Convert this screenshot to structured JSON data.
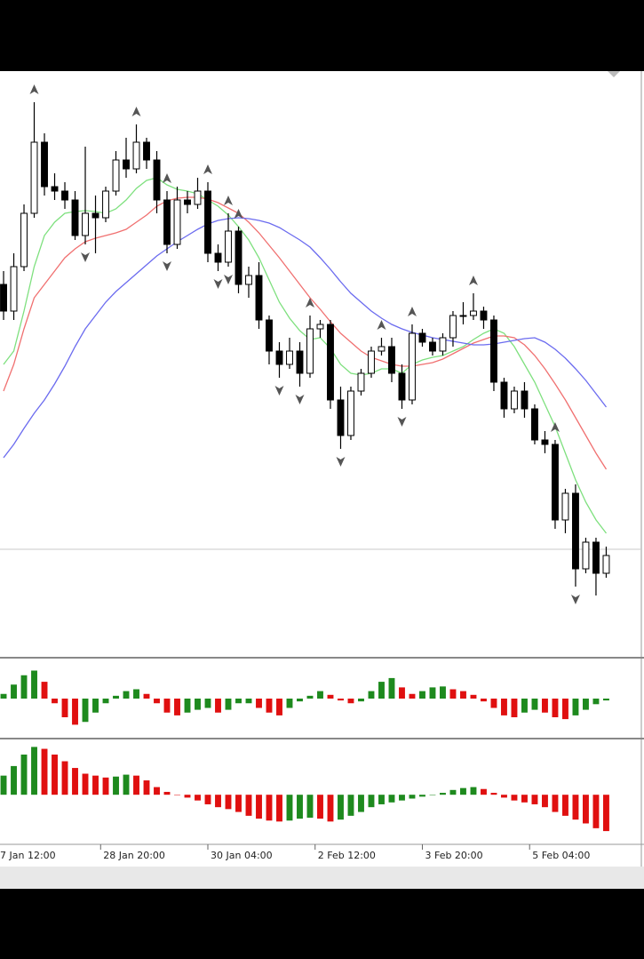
{
  "chart_data": {
    "type": "candlestick",
    "xlim": [
      -0.35,
      62.7
    ],
    "ylim": [
      0,
      660
    ],
    "xticks": [
      {
        "value": -1,
        "label": "7 Jan 12:00"
      },
      {
        "value": 9.5,
        "label": "28 Jan 20:00"
      },
      {
        "value": 20,
        "label": "30 Jan 04:00"
      },
      {
        "value": 30.5,
        "label": "2 Feb 12:00"
      },
      {
        "value": 41,
        "label": "3 Feb 20:00"
      },
      {
        "value": 51.5,
        "label": "5 Feb 04:00"
      }
    ],
    "open": [
      420,
      390,
      440,
      500,
      580,
      530,
      525,
      515,
      475,
      500,
      495,
      525,
      560,
      550,
      580,
      560,
      515,
      465,
      515,
      510,
      525,
      455,
      445,
      480,
      420,
      430,
      380,
      345,
      330,
      345,
      320,
      370,
      375,
      290,
      250,
      300,
      320,
      345,
      350,
      320,
      290,
      365,
      355,
      345,
      360,
      385,
      385,
      390,
      380,
      310,
      280,
      300,
      280,
      245,
      240,
      155,
      185,
      100,
      130,
      95
    ],
    "high": [
      435,
      455,
      510,
      625,
      590,
      545,
      535,
      525,
      575,
      520,
      530,
      570,
      585,
      600,
      585,
      570,
      525,
      530,
      525,
      540,
      535,
      465,
      500,
      485,
      440,
      445,
      385,
      355,
      360,
      355,
      385,
      380,
      380,
      305,
      305,
      325,
      350,
      360,
      360,
      330,
      375,
      370,
      360,
      365,
      390,
      400,
      410,
      395,
      385,
      315,
      305,
      310,
      285,
      255,
      245,
      190,
      195,
      135,
      135,
      125
    ],
    "low": [
      380,
      380,
      435,
      495,
      520,
      515,
      505,
      470,
      465,
      455,
      490,
      520,
      540,
      545,
      550,
      500,
      455,
      460,
      500,
      505,
      445,
      435,
      440,
      410,
      405,
      370,
      330,
      315,
      325,
      305,
      315,
      360,
      280,
      235,
      245,
      295,
      315,
      340,
      310,
      280,
      285,
      350,
      340,
      340,
      350,
      375,
      380,
      370,
      300,
      270,
      275,
      270,
      240,
      230,
      145,
      140,
      80,
      95,
      70,
      90
    ],
    "close": [
      390,
      440,
      500,
      580,
      530,
      525,
      515,
      475,
      500,
      495,
      525,
      560,
      550,
      580,
      560,
      515,
      465,
      515,
      510,
      525,
      455,
      445,
      480,
      420,
      430,
      380,
      345,
      330,
      345,
      320,
      370,
      375,
      290,
      250,
      300,
      320,
      345,
      350,
      320,
      290,
      365,
      355,
      345,
      360,
      385,
      385,
      390,
      380,
      310,
      280,
      300,
      280,
      245,
      240,
      155,
      185,
      100,
      130,
      95,
      115
    ],
    "bull_color": "#ffffff",
    "bear_color": "#000000",
    "moving_averages": [
      {
        "color": "#7ee07e",
        "values": [
          330,
          345,
          390,
          440,
          475,
          490,
          500,
          502,
          503,
          502,
          500,
          505,
          515,
          528,
          537,
          540,
          532,
          527,
          525,
          522,
          515,
          508,
          498,
          485,
          470,
          450,
          425,
          400,
          382,
          368,
          358,
          360,
          348,
          330,
          320,
          318,
          320,
          325,
          325,
          320,
          330,
          335,
          338,
          340,
          345,
          350,
          358,
          365,
          370,
          365,
          350,
          330,
          310,
          285,
          260,
          230,
          200,
          175,
          155,
          140
        ]
      },
      {
        "color": "#f07070",
        "values": [
          300,
          330,
          370,
          405,
          420,
          435,
          450,
          460,
          468,
          472,
          475,
          478,
          482,
          490,
          498,
          508,
          514,
          517,
          518,
          518,
          516,
          512,
          506,
          500,
          490,
          478,
          464,
          450,
          435,
          420,
          405,
          392,
          378,
          365,
          355,
          345,
          338,
          334,
          330,
          328,
          328,
          330,
          332,
          336,
          342,
          348,
          354,
          358,
          362,
          362,
          360,
          352,
          340,
          325,
          308,
          290,
          270,
          250,
          230,
          212
        ]
      },
      {
        "color": "#6b6bef",
        "values": [
          225,
          240,
          258,
          275,
          290,
          308,
          328,
          350,
          370,
          385,
          400,
          412,
          422,
          432,
          442,
          452,
          460,
          468,
          475,
          482,
          488,
          492,
          494,
          495,
          494,
          492,
          489,
          484,
          477,
          470,
          462,
          450,
          437,
          423,
          410,
          400,
          390,
          382,
          375,
          370,
          366,
          363,
          360,
          358,
          356,
          354,
          352,
          352,
          353,
          355,
          357,
          359,
          360,
          355,
          347,
          337,
          325,
          312,
          297,
          282
        ]
      }
    ],
    "price_line": 122,
    "fractals_up": [
      3,
      13,
      16,
      20,
      22,
      23,
      30,
      37,
      40,
      46,
      54
    ],
    "fractals_down": [
      8,
      16,
      21,
      22,
      27,
      29,
      33,
      39,
      56
    ],
    "oscillators": [
      {
        "ylim": [
          -40,
          40
        ],
        "up_color": "#1e8a1e",
        "down_color": "#e01010",
        "values": [
          5,
          15,
          25,
          30,
          18,
          -5,
          -20,
          -28,
          -25,
          -15,
          -5,
          3,
          8,
          10,
          5,
          -5,
          -15,
          -18,
          -15,
          -12,
          -10,
          -15,
          -12,
          -5,
          -5,
          -10,
          -15,
          -18,
          -10,
          -3,
          3,
          8,
          4,
          -2,
          -5,
          -3,
          8,
          18,
          22,
          12,
          5,
          8,
          12,
          13,
          10,
          8,
          4,
          -3,
          -10,
          -18,
          -20,
          -15,
          -12,
          -15,
          -20,
          -22,
          -18,
          -12,
          -6,
          -2
        ]
      },
      {
        "ylim": [
          -50,
          55
        ],
        "up_color": "#1e8a1e",
        "down_color": "#e01010",
        "values": [
          20,
          30,
          42,
          50,
          48,
          42,
          35,
          28,
          22,
          20,
          18,
          19,
          21,
          20,
          15,
          8,
          3,
          0,
          -3,
          -6,
          -10,
          -13,
          -15,
          -18,
          -22,
          -25,
          -27,
          -28,
          -27,
          -25,
          -24,
          -25,
          -28,
          -26,
          -22,
          -18,
          -13,
          -10,
          -8,
          -6,
          -4,
          -2,
          0,
          2,
          5,
          7,
          8,
          6,
          2,
          -3,
          -6,
          -8,
          -10,
          -13,
          -18,
          -22,
          -26,
          -30,
          -35,
          -38
        ]
      }
    ]
  }
}
